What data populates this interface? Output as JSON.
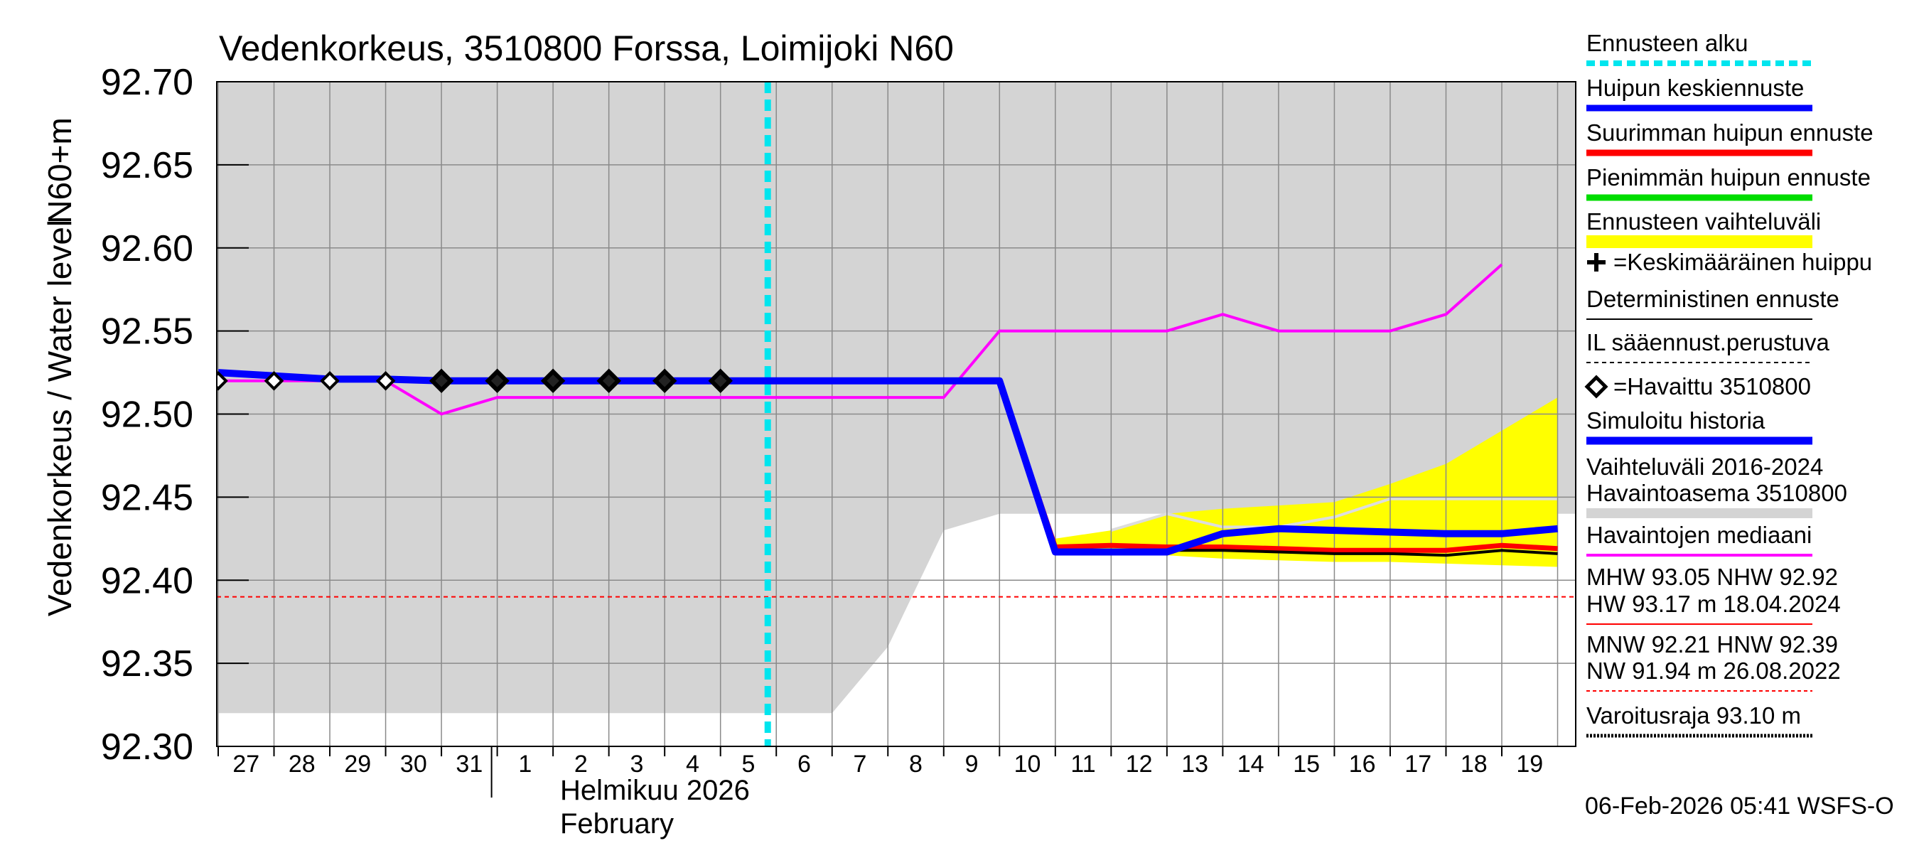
{
  "chart_data": {
    "type": "line",
    "title": "Vedenkorkeus, 3510800 Forssa, Loimijoki N60",
    "ylabel_fi": "Vedenkorkeus / Water level",
    "ylabel_unit": "N60+m",
    "ylim": [
      92.3,
      92.7
    ],
    "yticks": [
      92.3,
      92.35,
      92.4,
      92.45,
      92.5,
      92.55,
      92.6,
      92.65,
      92.7
    ],
    "ytick_labels": [
      "92.30",
      "92.35",
      "92.40",
      "92.45",
      "92.50",
      "92.55",
      "92.60",
      "92.65",
      "92.70"
    ],
    "x_day_labels": [
      "27",
      "28",
      "29",
      "30",
      "31",
      "1",
      "2",
      "3",
      "4",
      "5",
      "6",
      "7",
      "8",
      "9",
      "10",
      "11",
      "12",
      "13",
      "14",
      "15",
      "16",
      "17",
      "18",
      "19"
    ],
    "month_label_fi": "Helmikuu  2026",
    "month_label_en": "February",
    "forecast_start_day_index": 10,
    "timestamp": "06-Feb-2026 05:41 WSFS-O",
    "colors": {
      "history_range": "#d4d4d4",
      "forecast_range": "#ffff00",
      "mean_forecast": "#0000ff",
      "max_forecast": "#ff0000",
      "min_forecast": "#00dd00",
      "median": "#ff00ff",
      "forecast_start": "#00e5ee",
      "hnw_line": "#ff0000"
    },
    "series": [
      {
        "name": "Vaihteluväli 2016-2024 upper",
        "x": [
          0,
          14,
          15,
          23
        ],
        "values": [
          92.7,
          92.7,
          92.7,
          92.7
        ]
      },
      {
        "name": "Vaihteluväli 2016-2024 lower",
        "x": [
          0,
          11,
          12,
          13,
          14,
          15,
          23
        ],
        "values": [
          92.32,
          92.32,
          92.36,
          92.43,
          92.44,
          92.44,
          92.44
        ]
      },
      {
        "name": "Havaintojen mediaani",
        "x": [
          0,
          3,
          4,
          5,
          6,
          7,
          8,
          9,
          10,
          11,
          12,
          13,
          14,
          15,
          16,
          17,
          18,
          19,
          20,
          21,
          22,
          23
        ],
        "values": [
          92.52,
          92.52,
          92.5,
          92.51,
          92.51,
          92.51,
          92.51,
          92.51,
          92.51,
          92.51,
          92.51,
          92.51,
          92.55,
          92.55,
          92.55,
          92.55,
          92.56,
          92.55,
          92.55,
          92.55,
          92.56,
          92.59
        ]
      },
      {
        "name": "Ennusteen vaihteluväli upper",
        "x": [
          15,
          16,
          17,
          18,
          19,
          20,
          21,
          22,
          23,
          24
        ],
        "values": [
          92.425,
          92.43,
          92.44,
          92.443,
          92.445,
          92.447,
          92.458,
          92.47,
          92.49,
          92.51
        ]
      },
      {
        "name": "Ennusteen vaihteluväli lower",
        "x": [
          15,
          16,
          17,
          18,
          19,
          20,
          21,
          22,
          23,
          24
        ],
        "values": [
          92.417,
          92.415,
          92.415,
          92.413,
          92.412,
          92.411,
          92.411,
          92.41,
          92.409,
          92.408
        ]
      },
      {
        "name": "Suurimman huipun ennuste",
        "x": [
          14,
          15,
          16,
          17,
          18,
          19,
          20,
          21,
          22,
          23,
          24
        ],
        "values": [
          92.52,
          92.42,
          92.421,
          92.42,
          92.42,
          92.419,
          92.418,
          92.418,
          92.418,
          92.421,
          92.419
        ]
      },
      {
        "name": "Deterministinen ennuste",
        "x": [
          14,
          15,
          16,
          17,
          18,
          19,
          20,
          21,
          22,
          23,
          24
        ],
        "values": [
          92.52,
          92.418,
          92.418,
          92.418,
          92.418,
          92.417,
          92.416,
          92.416,
          92.415,
          92.418,
          92.416
        ]
      },
      {
        "name": "Huipun keskiennuste",
        "x": [
          0,
          1,
          2,
          3,
          4,
          5,
          6,
          7,
          8,
          9,
          10,
          11,
          12,
          13,
          14,
          15,
          16,
          17,
          18,
          19,
          20,
          21,
          22,
          23,
          24
        ],
        "values": [
          92.525,
          92.523,
          92.521,
          92.521,
          92.52,
          92.52,
          92.52,
          92.52,
          92.52,
          92.52,
          92.52,
          92.52,
          92.52,
          92.52,
          92.52,
          92.417,
          92.417,
          92.417,
          92.428,
          92.431,
          92.43,
          92.429,
          92.428,
          92.428,
          92.431
        ]
      },
      {
        "name": "Havaittu 3510800",
        "x": [
          0,
          1,
          2,
          3,
          4,
          5,
          6,
          7,
          8,
          9
        ],
        "values": [
          92.52,
          92.52,
          92.52,
          92.52,
          92.52,
          92.52,
          92.52,
          92.52,
          92.52,
          92.52
        ]
      },
      {
        "name": "HNW",
        "x": [
          0,
          24
        ],
        "values": [
          92.39,
          92.39
        ]
      }
    ],
    "legend": [
      {
        "label": "Ennusteen alku",
        "style": "forecast_start"
      },
      {
        "label": "Huipun keskiennuste",
        "style": "mean"
      },
      {
        "label": "Suurimman huipun ennuste",
        "style": "max"
      },
      {
        "label": "Pienimmän huipun ennuste",
        "style": "min"
      },
      {
        "label": "Ennusteen vaihteluväli",
        "style": "range"
      },
      {
        "label": "=Keskimääräinen huippu",
        "style": "plus"
      },
      {
        "label": "Deterministinen ennuste",
        "style": "det"
      },
      {
        "label": "IL sääennust.perustuva",
        "style": "il"
      },
      {
        "label": "=Havaittu 3510800",
        "style": "diamond"
      },
      {
        "label": "Simuloitu historia",
        "style": "sim"
      },
      {
        "label": "Vaihteluväli 2016-2024",
        "style": "none"
      },
      {
        "label": "Havaintoasema 3510800",
        "style": "grayband"
      },
      {
        "label": "Havaintojen mediaani",
        "style": "median"
      }
    ],
    "stats": [
      {
        "label": "MHW  93.05 NHW  92.92",
        "style": "none"
      },
      {
        "label": "HW  93.17 m 18.04.2024",
        "style": "redline"
      },
      {
        "label": "MNW  92.21 HNW  92.39",
        "style": "none"
      },
      {
        "label": "NW  91.94 m 26.08.2022",
        "style": "reddash"
      },
      {
        "label": "Varoitusraja 93.10 m",
        "style": "blackdot"
      }
    ]
  }
}
